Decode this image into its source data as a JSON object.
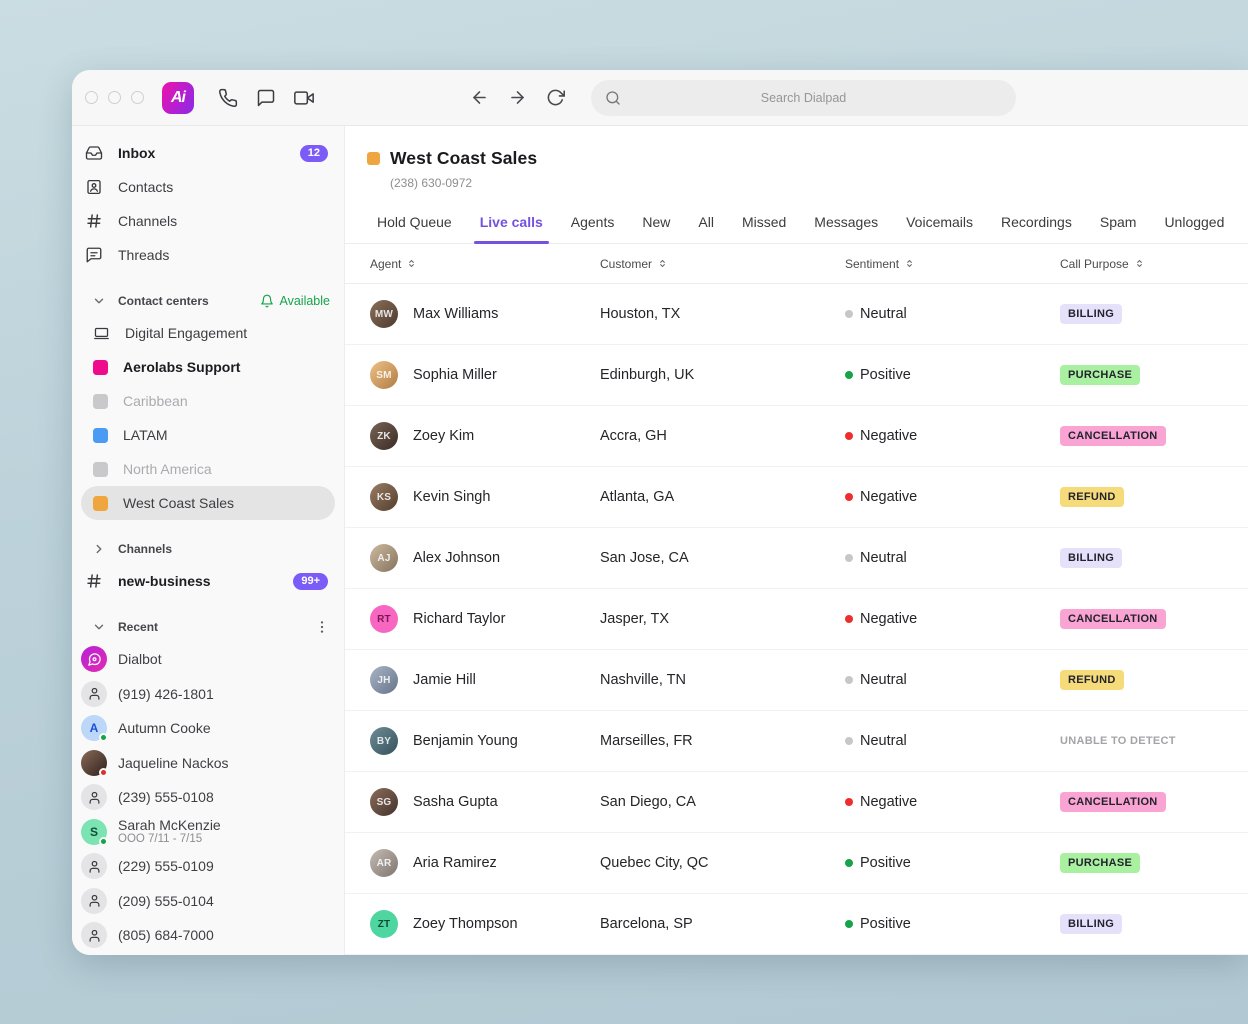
{
  "topbar": {
    "logo_text": "Ai",
    "search_placeholder": "Search Dialpad"
  },
  "sidebar": {
    "nav": [
      {
        "label": "Inbox",
        "icon": "inbox-icon",
        "bold": true,
        "badge": "12"
      },
      {
        "label": "Contacts",
        "icon": "contacts-icon"
      },
      {
        "label": "Channels",
        "icon": "hash-icon"
      },
      {
        "label": "Threads",
        "icon": "threads-icon"
      }
    ],
    "contact_centers": {
      "label": "Contact centers",
      "status_label": "Available",
      "status_color": "#17a34a",
      "items": [
        {
          "label": "Digital Engagement",
          "icon": "monitor-icon"
        },
        {
          "label": "Aerolabs Support",
          "square_color": "#ee0c8c",
          "bold": true
        },
        {
          "label": "Caribbean",
          "square_color": "#c9c9cb",
          "muted": true
        },
        {
          "label": "LATAM",
          "square_color": "#4b9bf5"
        },
        {
          "label": "North America",
          "square_color": "#c9c9cb",
          "muted": true
        },
        {
          "label": "West Coast Sales",
          "square_color": "#f0a63e",
          "selected": true
        }
      ]
    },
    "channels_section": {
      "label": "Channels",
      "items": [
        {
          "label": "new-business",
          "icon": "hash-icon",
          "bold": true,
          "badge": "99+"
        }
      ]
    },
    "recent": {
      "label": "Recent",
      "items": [
        {
          "label": "Dialbot",
          "avatar": {
            "type": "bot",
            "bg": [
              "#b621d6",
              "#e22bb4"
            ]
          }
        },
        {
          "label": "(919) 426-1801",
          "avatar": {
            "type": "person"
          }
        },
        {
          "label": "Autumn Cooke",
          "avatar": {
            "type": "initial",
            "initial": "A",
            "bg": "#bcd7f7",
            "fg": "#1d4ed8",
            "presence": "#17a34a"
          }
        },
        {
          "label": "Jaqueline Nackos",
          "avatar": {
            "type": "photo",
            "bg": [
              "#8a6a58",
              "#2f211c"
            ],
            "presence": "#e02d2d"
          }
        },
        {
          "label": "(239) 555-0108",
          "avatar": {
            "type": "person"
          }
        },
        {
          "label": "Sarah McKenzie",
          "sub": "OOO 7/11 - 7/15",
          "avatar": {
            "type": "initial",
            "initial": "S",
            "bg": "#7ce3b3",
            "fg": "#0c5132",
            "presence": "#17a34a"
          }
        },
        {
          "label": "(229) 555-0109",
          "avatar": {
            "type": "person"
          }
        },
        {
          "label": "(209) 555-0104",
          "avatar": {
            "type": "person"
          }
        },
        {
          "label": "(805) 684-7000",
          "avatar": {
            "type": "person"
          }
        }
      ]
    }
  },
  "main": {
    "title": "West Coast Sales",
    "title_square_color": "#f0a63e",
    "phone": "(238) 630-0972",
    "tabs": [
      {
        "label": "Hold Queue"
      },
      {
        "label": "Live calls",
        "active": true
      },
      {
        "label": "Agents"
      },
      {
        "label": "New"
      },
      {
        "label": "All"
      },
      {
        "label": "Missed"
      },
      {
        "label": "Messages"
      },
      {
        "label": "Voicemails"
      },
      {
        "label": "Recordings"
      },
      {
        "label": "Spam"
      },
      {
        "label": "Unlogged"
      }
    ],
    "table": {
      "columns": [
        "Agent",
        "Customer",
        "Sentiment",
        "Call Purpose"
      ],
      "rows": [
        {
          "agent": "Max Williams",
          "initials": "MW",
          "avatar": {
            "type": "photo",
            "bg": [
              "#8a6f5a",
              "#4c3a2e"
            ]
          },
          "customer": "Houston, TX",
          "sentiment": "Neutral",
          "purpose": "BILLING",
          "purpose_type": "billing"
        },
        {
          "agent": "Sophia Miller",
          "initials": "SM",
          "avatar": {
            "type": "photo",
            "bg": [
              "#eec286",
              "#b07c43"
            ]
          },
          "customer": "Edinburgh, UK",
          "sentiment": "Positive",
          "purpose": "PURCHASE",
          "purpose_type": "purchase"
        },
        {
          "agent": "Zoey Kim",
          "initials": "ZK",
          "avatar": {
            "type": "photo",
            "bg": [
              "#7a6456",
              "#382b24"
            ]
          },
          "customer": "Accra, GH",
          "sentiment": "Negative",
          "purpose": "CANCELLATION",
          "purpose_type": "cancellation"
        },
        {
          "agent": "Kevin Singh",
          "initials": "KS",
          "avatar": {
            "type": "photo",
            "bg": [
              "#9b7d63",
              "#523d2e"
            ]
          },
          "customer": "Atlanta, GA",
          "sentiment": "Negative",
          "purpose": "REFUND",
          "purpose_type": "refund"
        },
        {
          "agent": "Alex Johnson",
          "initials": "AJ",
          "avatar": {
            "type": "photo",
            "bg": [
              "#cdbaa0",
              "#84725c"
            ]
          },
          "customer": "San Jose, CA",
          "sentiment": "Neutral",
          "purpose": "BILLING",
          "purpose_type": "billing"
        },
        {
          "agent": "Richard Taylor",
          "initials": "RT",
          "avatar": {
            "type": "initials",
            "bg": "#f767c2",
            "fg": "#7c1650"
          },
          "customer": "Jasper, TX",
          "sentiment": "Negative",
          "purpose": "CANCELLATION",
          "purpose_type": "cancellation"
        },
        {
          "agent": "Jamie Hill",
          "initials": "JH",
          "avatar": {
            "type": "photo",
            "bg": [
              "#aab5c5",
              "#66748a"
            ]
          },
          "customer": "Nashville, TN",
          "sentiment": "Neutral",
          "purpose": "REFUND",
          "purpose_type": "refund"
        },
        {
          "agent": "Benjamin Young",
          "initials": "BY",
          "avatar": {
            "type": "photo",
            "bg": [
              "#6f8d96",
              "#35525c"
            ]
          },
          "customer": "Marseilles, FR",
          "sentiment": "Neutral",
          "purpose": "UNABLE TO DETECT",
          "purpose_type": "none"
        },
        {
          "agent": "Sasha Gupta",
          "initials": "SG",
          "avatar": {
            "type": "photo",
            "bg": [
              "#8c6d5c",
              "#43322a"
            ]
          },
          "customer": "San Diego, CA",
          "sentiment": "Negative",
          "purpose": "CANCELLATION",
          "purpose_type": "cancellation"
        },
        {
          "agent": "Aria Ramirez",
          "initials": "AR",
          "avatar": {
            "type": "photo",
            "bg": [
              "#c4bcb4",
              "#7e766e"
            ]
          },
          "customer": "Quebec City, QC",
          "sentiment": "Positive",
          "purpose": "PURCHASE",
          "purpose_type": "purchase"
        },
        {
          "agent": "Zoey Thompson",
          "initials": "ZT",
          "avatar": {
            "type": "initials",
            "bg": "#4fd6a0",
            "fg": "#0b4a33"
          },
          "customer": "Barcelona, SP",
          "sentiment": "Positive",
          "purpose": "BILLING",
          "purpose_type": "billing"
        }
      ]
    }
  },
  "colors": {
    "accent_purple": "#7c5cf6",
    "active_tab_purple": "#7452e0",
    "sentiment": {
      "Neutral": "#c7c7ca",
      "Positive": "#17a34a",
      "Negative": "#ee2e2e"
    },
    "badges": {
      "billing": "#e5e1fb",
      "purchase": "#aaf0a1",
      "cancellation": "#f9a4d3",
      "refund": "#f6db7b",
      "none": "transparent"
    }
  }
}
